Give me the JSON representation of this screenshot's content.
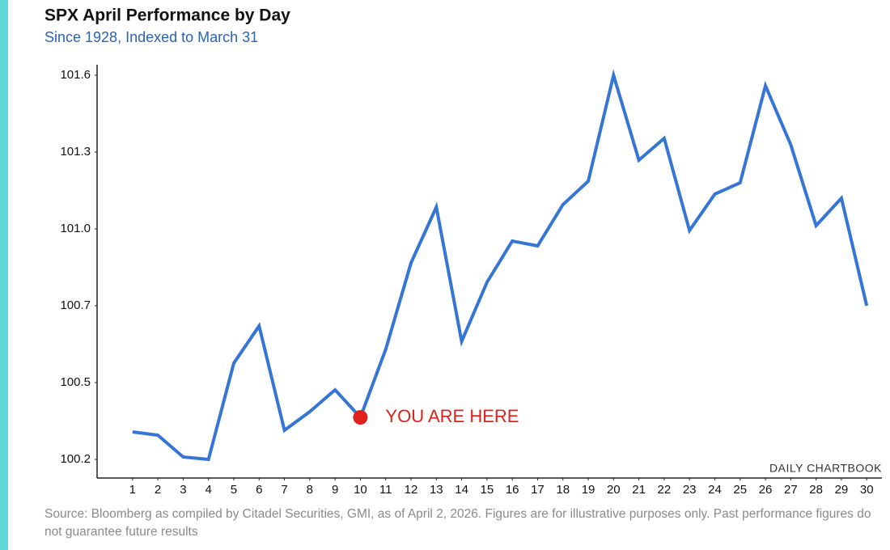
{
  "chart_data": {
    "type": "line",
    "title": "SPX April Performance by Day",
    "subtitle": "Since 1928, Indexed to March 31",
    "source": "Source: Bloomberg as compiled by Citadel Securities, GMI, as of April 2, 2026. Figures are for illustrative purposes only. Past performance figures do not guarantee future results",
    "watermark": "DAILY CHARTBOOK",
    "x": [
      1,
      2,
      3,
      4,
      5,
      6,
      7,
      8,
      9,
      10,
      11,
      12,
      13,
      14,
      15,
      16,
      17,
      18,
      19,
      20,
      21,
      22,
      23,
      24,
      25,
      26,
      27,
      28,
      29,
      30
    ],
    "series": [
      {
        "name": "SPX",
        "color": "#3575d5",
        "values": [
          100.277,
          100.265,
          100.184,
          100.175,
          100.532,
          100.67,
          100.283,
          100.352,
          100.433,
          100.331,
          100.583,
          100.904,
          101.111,
          100.613,
          100.832,
          100.985,
          100.967,
          101.12,
          101.207,
          101.6,
          101.285,
          101.366,
          101.024,
          101.159,
          101.201,
          101.561,
          101.342,
          101.042,
          101.144,
          100.745
        ]
      }
    ],
    "xlim": [
      -0.4,
      30.6
    ],
    "xticks": [
      1,
      2,
      3,
      4,
      5,
      6,
      7,
      8,
      9,
      10,
      11,
      12,
      13,
      14,
      15,
      16,
      17,
      18,
      19,
      20,
      21,
      22,
      23,
      24,
      25,
      26,
      27,
      28,
      29,
      30
    ],
    "ylim": [
      100.106,
      101.639
    ],
    "yticks": [
      101.6,
      {
        "value": 101.315,
        "label": "101.3"
      },
      {
        "value": 101.03,
        "label": "101.0"
      },
      {
        "value": 100.745,
        "label": "100.7"
      },
      {
        "value": 100.46,
        "label": "100.5"
      },
      {
        "value": 100.175,
        "label": "100.2"
      }
    ],
    "grid": false,
    "annotations": [
      {
        "text": "YOU ARE HERE",
        "x": 10,
        "color": "#e0201b"
      }
    ]
  }
}
